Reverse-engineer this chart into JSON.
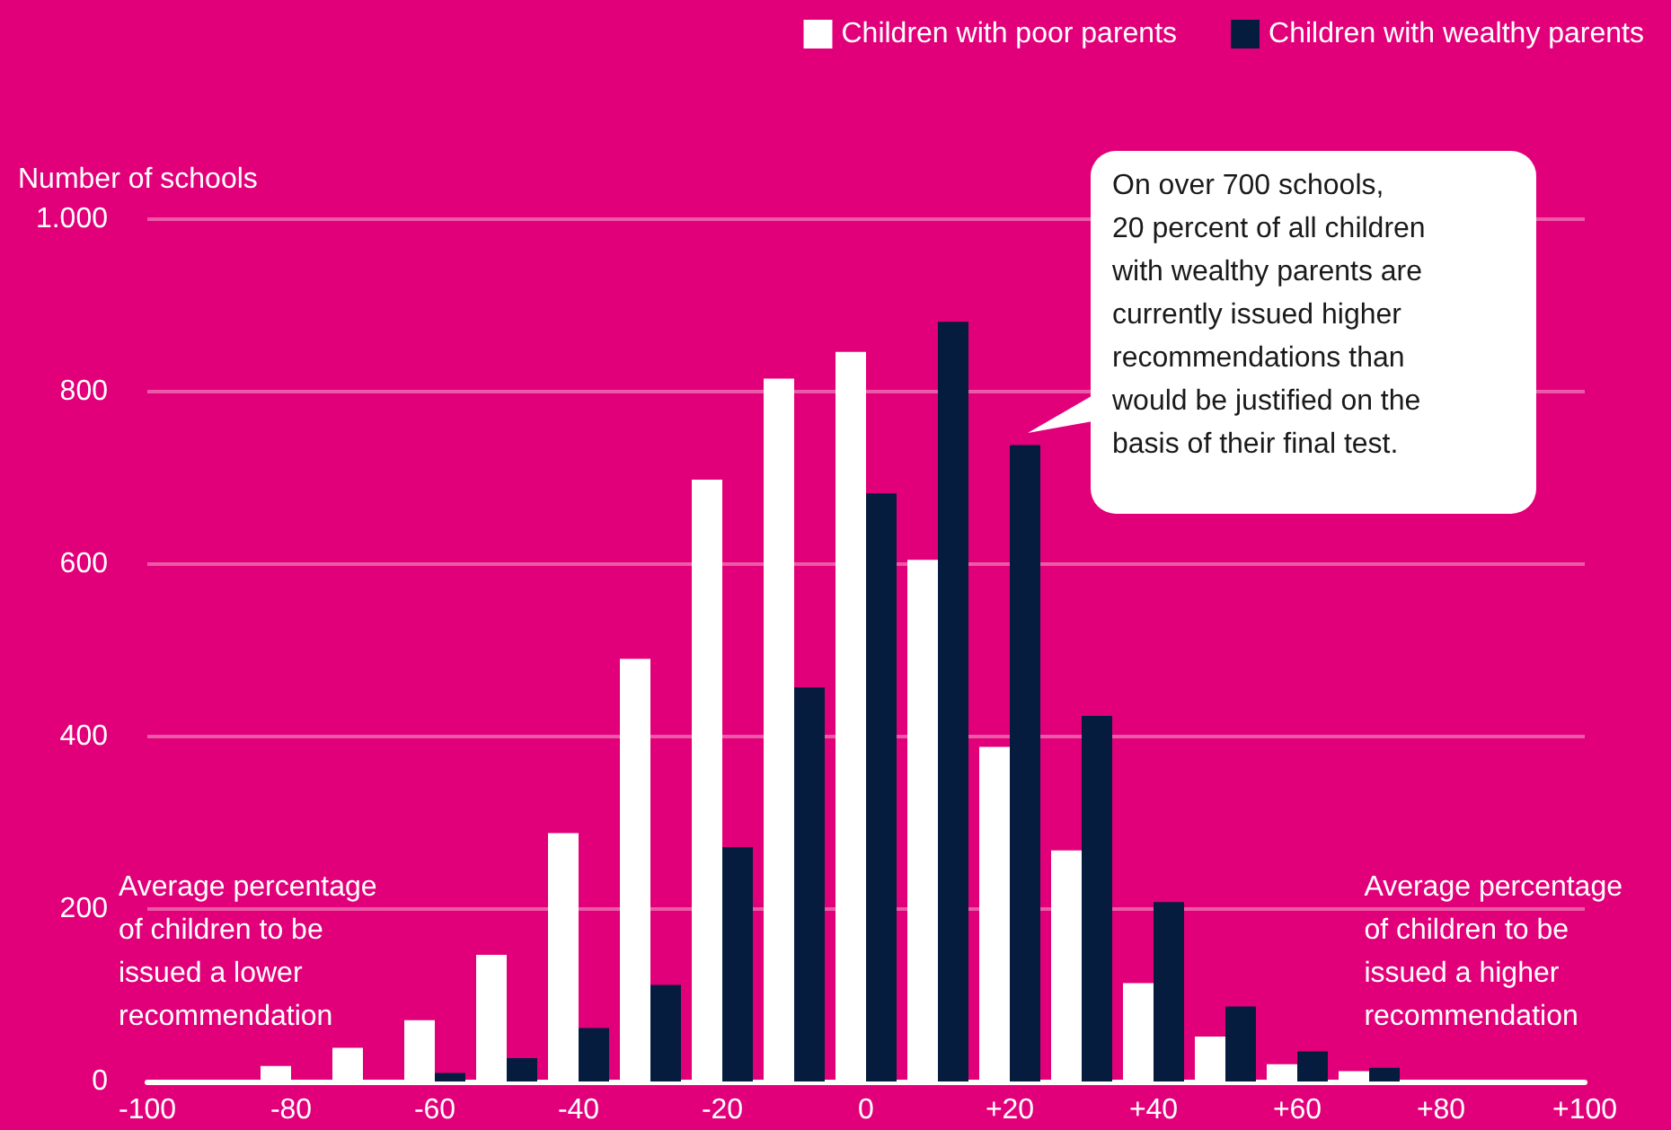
{
  "chart_data": {
    "type": "bar",
    "ylabel": "Number of schools",
    "x": [
      -80,
      -70,
      -60,
      -50,
      -40,
      -30,
      -20,
      -10,
      0,
      10,
      20,
      30,
      40,
      50,
      60,
      70
    ],
    "series": [
      {
        "name": "Children with poor parents",
        "color": "#ffffff",
        "values": [
          18,
          39,
          71,
          147,
          288,
          490,
          698,
          815,
          846,
          605,
          388,
          268,
          114,
          52,
          20,
          12
        ]
      },
      {
        "name": "Children with wealthy parents",
        "color": "#051c3f",
        "values": [
          0,
          0,
          10,
          27,
          62,
          112,
          272,
          457,
          682,
          881,
          738,
          424,
          208,
          87,
          35,
          16
        ]
      }
    ],
    "xlim": [
      -100,
      100
    ],
    "xticks": [
      -100,
      -80,
      -60,
      -40,
      -20,
      0,
      {
        "value": 20,
        "label": "+20"
      },
      {
        "value": 40,
        "label": "+40"
      },
      {
        "value": 60,
        "label": "+60"
      },
      {
        "value": 80,
        "label": "+80"
      },
      {
        "value": 100,
        "label": "+100"
      }
    ],
    "ylim": [
      0,
      1000
    ],
    "yticks": [
      0,
      200,
      400,
      600,
      800,
      {
        "value": 1000,
        "label": "1.000"
      }
    ],
    "grid": "y",
    "legend": "top right",
    "annotations": [
      "On over 700 schools,\n20 percent of all children\nwith wealthy parents are\ncurrently issued higher\nrecommendations than\nwould be justified on the\nbasis of their final test.",
      "Average percentage\nof children to be\nissued a lower\nrecommendation",
      "Average percentage\nof children to be\nissued a higher\nrecommendation"
    ]
  }
}
